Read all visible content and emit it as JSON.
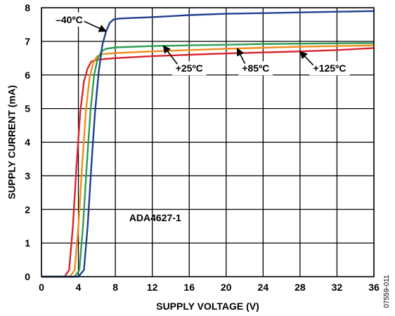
{
  "chart_data": {
    "type": "line",
    "xlabel": "SUPPLY VOLTAGE (V)",
    "ylabel": "SUPPLY CURRENT (mA)",
    "xlim": [
      0,
      36
    ],
    "ylim": [
      0,
      8
    ],
    "xticks": [
      0,
      4,
      8,
      12,
      16,
      20,
      24,
      28,
      32,
      36
    ],
    "yticks": [
      0,
      1,
      2,
      3,
      4,
      5,
      6,
      7,
      8
    ],
    "grid": true,
    "note": "ADA4627-1",
    "figure_id": "07559-011",
    "series": [
      {
        "name": "–40ºC",
        "color": "#1f3f8f",
        "x": [
          0,
          4.0,
          4.6,
          5.0,
          5.4,
          5.8,
          6.2,
          6.6,
          7.0,
          7.4,
          7.8,
          8.5,
          12,
          16,
          20,
          24,
          28,
          32,
          36
        ],
        "y": [
          0,
          0,
          0.2,
          1.5,
          3.3,
          4.9,
          6.1,
          6.9,
          7.3,
          7.55,
          7.65,
          7.68,
          7.72,
          7.78,
          7.82,
          7.84,
          7.86,
          7.88,
          7.9
        ]
      },
      {
        "name": "+25ºC",
        "color": "#2e9d54",
        "x": [
          0,
          3.6,
          4.1,
          4.5,
          4.9,
          5.3,
          5.7,
          6.1,
          6.5,
          7.0,
          8,
          12,
          16,
          20,
          24,
          28,
          32,
          36
        ],
        "y": [
          0,
          0,
          0.2,
          1.5,
          3.3,
          4.9,
          6.0,
          6.5,
          6.7,
          6.78,
          6.82,
          6.86,
          6.88,
          6.9,
          6.92,
          6.93,
          6.94,
          6.95
        ]
      },
      {
        "name": "+85ºC",
        "color": "#f28c1a",
        "x": [
          0,
          3.1,
          3.6,
          4.0,
          4.4,
          4.8,
          5.2,
          5.6,
          6.0,
          6.6,
          8,
          12,
          16,
          20,
          24,
          28,
          32,
          36
        ],
        "y": [
          0,
          0,
          0.2,
          1.5,
          3.3,
          4.9,
          5.9,
          6.35,
          6.55,
          6.62,
          6.65,
          6.7,
          6.74,
          6.78,
          6.81,
          6.84,
          6.86,
          6.88
        ]
      },
      {
        "name": "+125ºC",
        "color": "#d9242f",
        "x": [
          0,
          2.5,
          3.0,
          3.4,
          3.8,
          4.2,
          4.6,
          5.0,
          5.4,
          6.0,
          7,
          8,
          12,
          16,
          20,
          24,
          28,
          32,
          36
        ],
        "y": [
          0,
          0,
          0.2,
          1.5,
          3.3,
          4.9,
          5.8,
          6.2,
          6.4,
          6.45,
          6.48,
          6.5,
          6.56,
          6.6,
          6.64,
          6.67,
          6.7,
          6.74,
          6.8
        ]
      }
    ],
    "annotations": [
      {
        "text": "–40ºC",
        "series": "–40ºC",
        "at_x": 7.0,
        "at_y": 7.3,
        "label_x": 3.0,
        "label_y": 7.65
      },
      {
        "text": "+25ºC",
        "series": "+25ºC",
        "at_x": 13.2,
        "at_y": 6.87,
        "label_x": 16.0,
        "label_y": 6.2
      },
      {
        "text": "+85ºC",
        "series": "+85ºC",
        "at_x": 21.2,
        "at_y": 6.79,
        "label_x": 23.2,
        "label_y": 6.2
      },
      {
        "text": "+125ºC",
        "series": "+125ºC",
        "at_x": 28.0,
        "at_y": 6.7,
        "label_x": 31.2,
        "label_y": 6.2
      }
    ]
  }
}
